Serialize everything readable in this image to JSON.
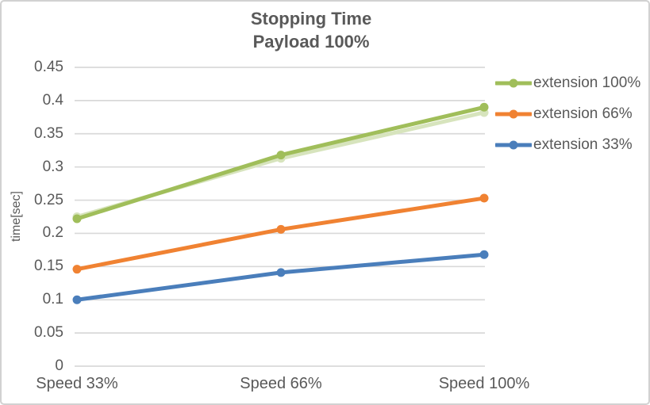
{
  "chart": {
    "title_line1": "Stopping Time",
    "title_line2": "Payload 100%"
  },
  "chart_data": {
    "type": "line",
    "title": "Stopping Time",
    "subtitle": "Payload 100%",
    "categories": [
      "Speed 33%",
      "Speed 66%",
      "Speed 100%"
    ],
    "series": [
      {
        "name": "extension 100%",
        "color": "#A0BE5A",
        "values": [
          0.222,
          0.318,
          0.39
        ],
        "shadow_values": [
          0.225,
          0.313,
          0.382
        ],
        "shadow_color": "#D7E4BD"
      },
      {
        "name": "extension 66%",
        "color": "#F08232",
        "values": [
          0.146,
          0.206,
          0.253
        ]
      },
      {
        "name": "extension 33%",
        "color": "#4A7EBB",
        "values": [
          0.1,
          0.141,
          0.168
        ]
      }
    ],
    "xlabel": "",
    "ylabel": "time[sec]",
    "ylim": [
      0,
      0.45
    ],
    "ytick_labels": [
      "0",
      "0.05",
      "0.1",
      "0.15",
      "0.2",
      "0.25",
      "0.3",
      "0.35",
      "0.4",
      "0.45"
    ],
    "grid": true,
    "legend_position": "right",
    "marker": "circle"
  },
  "colors": {
    "text": "#595959",
    "gridline": "#D9D9D9",
    "border": "#D1D1D1",
    "background": "#FFFFFF"
  }
}
